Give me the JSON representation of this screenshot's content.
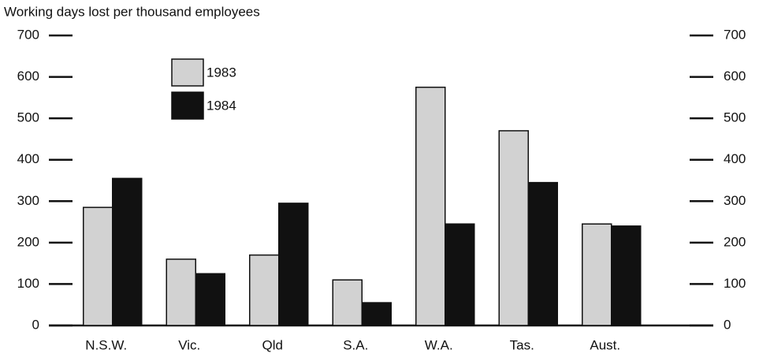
{
  "chart_data": {
    "type": "bar",
    "y_label": "Working days lost per thousand employees",
    "categories": [
      "N.S.W.",
      "Vic.",
      "Qld",
      "S.A.",
      "W.A.",
      "Tas.",
      "Aust."
    ],
    "series": [
      {
        "name": "1983",
        "color": "#d2d2d2",
        "values": [
          285,
          160,
          170,
          110,
          575,
          470,
          245
        ]
      },
      {
        "name": "1984",
        "color": "#111111",
        "values": [
          355,
          125,
          295,
          55,
          245,
          345,
          240
        ]
      }
    ],
    "ylim": [
      0,
      700
    ],
    "yticks": [
      0,
      100,
      200,
      300,
      400,
      500,
      600,
      700
    ]
  }
}
